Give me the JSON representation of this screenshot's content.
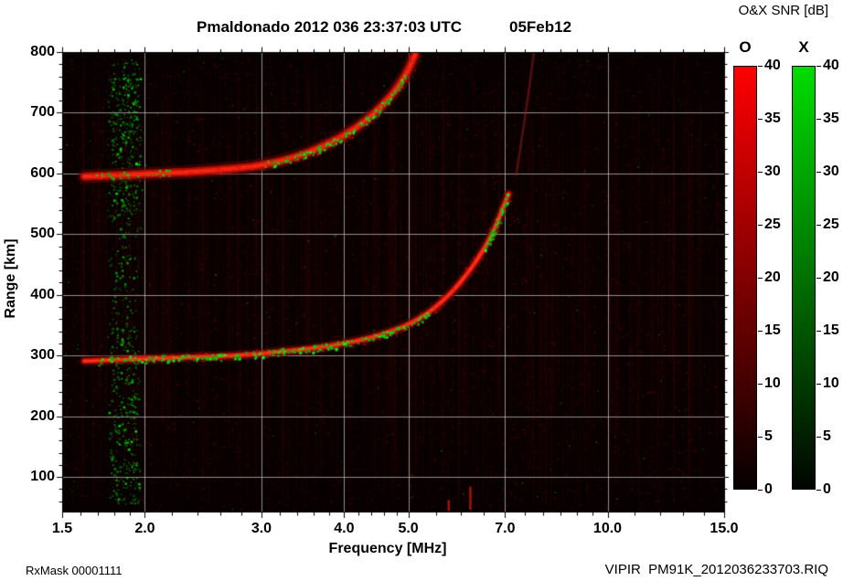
{
  "header": {
    "title": "Pmaldonado 2012 036 23:37:03 UTC",
    "date_label": "05Feb12",
    "colorbar_title": "O&X SNR [dB]"
  },
  "footer": {
    "rx_mask": "RxMask 00001111",
    "file_label": "VIPIR  PM91K_2012036233703.RIQ"
  },
  "chart_data": {
    "type": "heatmap",
    "title": "Pmaldonado 2012 036 23:37:03 UTC 05Feb12",
    "subtitle": "O&X SNR [dB]",
    "xlabel": "Frequency [MHz]",
    "ylabel": "Range [km]",
    "x_scale": "log",
    "xlim": [
      1.5,
      15.0
    ],
    "ylim": [
      43,
      800
    ],
    "x_ticks": [
      1.5,
      2.0,
      3.0,
      4.0,
      5.0,
      7.0,
      10.0,
      15.0
    ],
    "x_tick_labels": [
      "1.5",
      "2.0",
      "3.0",
      "4.0",
      "5.0",
      "7.0",
      "10.0",
      "15.0"
    ],
    "x_minor_ticks": [
      1.6,
      1.7,
      1.8,
      1.9,
      2.2,
      2.4,
      2.6,
      2.8,
      3.2,
      3.4,
      3.6,
      3.8,
      4.2,
      4.4,
      4.6,
      4.8,
      5.5,
      6.0,
      6.5,
      7.5,
      8.0,
      8.5,
      9.0,
      9.5,
      11.0,
      12.0,
      13.0,
      14.0
    ],
    "y_ticks": [
      100,
      200,
      300,
      400,
      500,
      600,
      700,
      800
    ],
    "y_minor_step": 20,
    "grid": true,
    "background": "#070101",
    "grid_color": "#bebebe",
    "colorbars": [
      {
        "name": "O",
        "unit": "dB",
        "min": 0,
        "max": 40,
        "ticks": [
          0,
          5,
          10,
          15,
          20,
          25,
          30,
          35,
          40
        ],
        "color_low": "#050000",
        "color_high": "#ff0000"
      },
      {
        "name": "X",
        "unit": "dB",
        "min": 0,
        "max": 40,
        "ticks": [
          0,
          5,
          10,
          15,
          20,
          25,
          30,
          35,
          40
        ],
        "color_low": "#000500",
        "color_high": "#00dc00"
      }
    ],
    "traces": [
      {
        "name": "F-region O-mode echo (1st hop), foF2 ~7.1 MHz",
        "style": "normal",
        "color": "#ff3018",
        "points": [
          [
            1.62,
            291
          ],
          [
            1.8,
            293
          ],
          [
            2.0,
            295
          ],
          [
            2.3,
            297
          ],
          [
            2.6,
            299
          ],
          [
            2.9,
            302
          ],
          [
            3.1,
            305
          ],
          [
            3.4,
            309
          ],
          [
            3.7,
            314
          ],
          [
            4.0,
            320
          ],
          [
            4.3,
            327
          ],
          [
            4.6,
            336
          ],
          [
            4.9,
            347
          ],
          [
            5.1,
            356
          ],
          [
            5.3,
            367
          ],
          [
            5.5,
            380
          ],
          [
            5.7,
            395
          ],
          [
            5.9,
            412
          ],
          [
            6.1,
            431
          ],
          [
            6.3,
            452
          ],
          [
            6.5,
            475
          ],
          [
            6.65,
            495
          ],
          [
            6.8,
            517
          ],
          [
            6.9,
            535
          ],
          [
            6.98,
            549
          ],
          [
            7.05,
            560
          ],
          [
            7.09,
            566
          ]
        ]
      },
      {
        "name": "F-region echo (2nd hop, ~2x virtual range)",
        "style": "thick",
        "color": "#e02008",
        "points": [
          [
            1.62,
            595
          ],
          [
            1.8,
            597
          ],
          [
            2.0,
            599
          ],
          [
            2.3,
            602
          ],
          [
            2.6,
            606
          ],
          [
            2.9,
            611
          ],
          [
            3.1,
            617
          ],
          [
            3.3,
            624
          ],
          [
            3.5,
            633
          ],
          [
            3.7,
            644
          ],
          [
            3.9,
            656
          ],
          [
            4.1,
            670
          ],
          [
            4.3,
            686
          ],
          [
            4.5,
            705
          ],
          [
            4.7,
            727
          ],
          [
            4.85,
            746
          ],
          [
            5.0,
            770
          ],
          [
            5.12,
            796
          ]
        ]
      },
      {
        "name": "faint high-frequency trace (X-mode asymptote)",
        "style": "faint",
        "color": "#7a1a18",
        "points": [
          [
            7.28,
            598
          ],
          [
            7.4,
            648
          ],
          [
            7.52,
            700
          ],
          [
            7.64,
            752
          ],
          [
            7.74,
            800
          ]
        ]
      }
    ],
    "scatter": {
      "interference_band": {
        "f_range": [
          1.77,
          1.96
        ],
        "color": "#00b400",
        "description": "vertical green interference stripe near 1.8-1.9 MHz"
      },
      "trace_speckles": [
        {
          "trace": 0,
          "f_range": [
            1.7,
            2.6
          ],
          "count": 110
        },
        {
          "trace": 0,
          "f_range": [
            2.6,
            5.4
          ],
          "count": 200
        },
        {
          "trace": 0,
          "f_range": [
            6.5,
            7.08
          ],
          "count": 70
        },
        {
          "trace": 1,
          "f_range": [
            3.0,
            4.95
          ],
          "count": 150
        },
        {
          "trace": 1,
          "f_range": [
            1.65,
            2.2
          ],
          "count": 35
        }
      ],
      "sparse_dots_count": 160
    },
    "rfi_marks": [
      {
        "f": 6.2,
        "km": [
          46,
          84
        ]
      },
      {
        "f": 5.75,
        "km": [
          44,
          62
        ]
      }
    ]
  }
}
